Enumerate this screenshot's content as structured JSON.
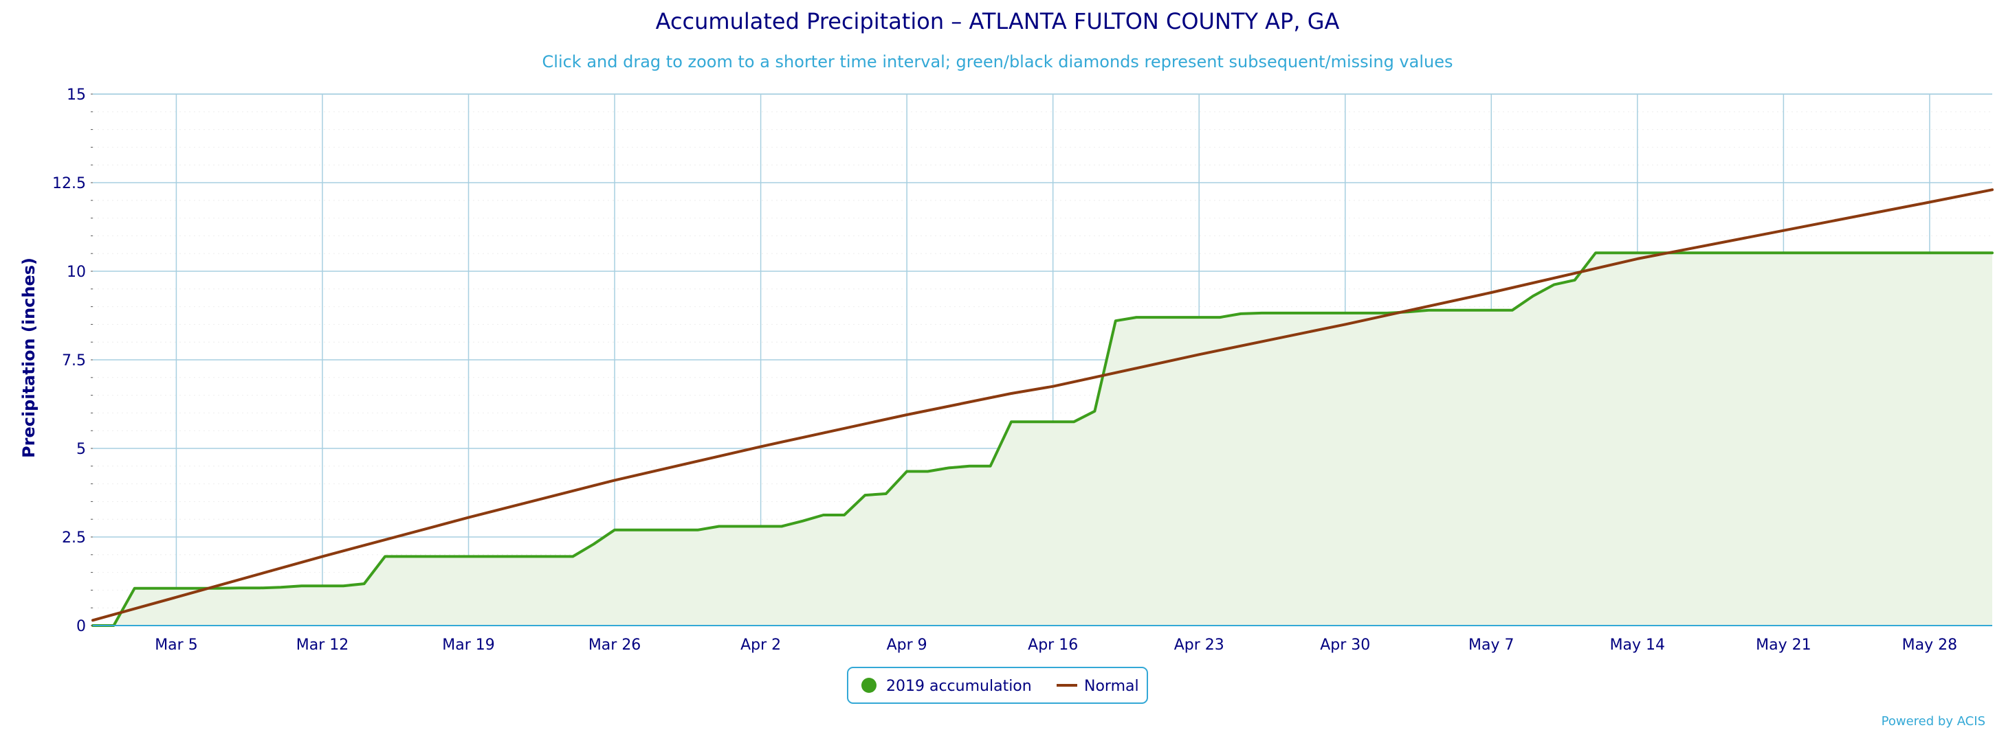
{
  "chart_data": {
    "type": "line",
    "title": "Accumulated Precipitation – ATLANTA FULTON COUNTY AP, GA",
    "subtitle": "Click and drag to zoom to a shorter time interval; green/black diamonds represent subsequent/missing values",
    "ylabel": "Precipitation (inches)",
    "xlabel": "",
    "ylim": [
      0,
      15
    ],
    "yticks": [
      0,
      2.5,
      5,
      7.5,
      10,
      12.5,
      15
    ],
    "ytick_labels": [
      "0",
      "2.5",
      "5",
      "7.5",
      "10",
      "12.5",
      "15"
    ],
    "xlim": [
      "2019-03-01",
      "2019-05-31"
    ],
    "xticks": [
      "2019-03-05",
      "2019-03-12",
      "2019-03-19",
      "2019-03-26",
      "2019-04-02",
      "2019-04-09",
      "2019-04-16",
      "2019-04-23",
      "2019-04-30",
      "2019-05-07",
      "2019-05-14",
      "2019-05-21",
      "2019-05-28"
    ],
    "xtick_labels": [
      "Mar 5",
      "Mar 12",
      "Mar 19",
      "Mar 26",
      "Apr 2",
      "Apr 9",
      "Apr 16",
      "Apr 23",
      "Apr 30",
      "May 7",
      "May 14",
      "May 21",
      "May 28"
    ],
    "grid": true,
    "legend_position": "bottom-center",
    "series": [
      {
        "name": "2019 accumulation",
        "color": "#3d9e1c",
        "fill": "#ebf4e6",
        "points": [
          [
            "2019-03-01",
            0
          ],
          [
            "2019-03-02",
            0
          ],
          [
            "2019-03-03",
            1.05
          ],
          [
            "2019-03-04",
            1.05
          ],
          [
            "2019-03-05",
            1.05
          ],
          [
            "2019-03-06",
            1.05
          ],
          [
            "2019-03-07",
            1.05
          ],
          [
            "2019-03-08",
            1.06
          ],
          [
            "2019-03-09",
            1.06
          ],
          [
            "2019-03-10",
            1.08
          ],
          [
            "2019-03-11",
            1.12
          ],
          [
            "2019-03-12",
            1.12
          ],
          [
            "2019-03-13",
            1.12
          ],
          [
            "2019-03-14",
            1.18
          ],
          [
            "2019-03-15",
            1.95
          ],
          [
            "2019-03-16",
            1.95
          ],
          [
            "2019-03-17",
            1.95
          ],
          [
            "2019-03-18",
            1.95
          ],
          [
            "2019-03-19",
            1.95
          ],
          [
            "2019-03-20",
            1.95
          ],
          [
            "2019-03-21",
            1.95
          ],
          [
            "2019-03-22",
            1.95
          ],
          [
            "2019-03-23",
            1.95
          ],
          [
            "2019-03-24",
            1.95
          ],
          [
            "2019-03-25",
            2.3
          ],
          [
            "2019-03-26",
            2.7
          ],
          [
            "2019-03-27",
            2.7
          ],
          [
            "2019-03-28",
            2.7
          ],
          [
            "2019-03-29",
            2.7
          ],
          [
            "2019-03-30",
            2.7
          ],
          [
            "2019-03-31",
            2.8
          ],
          [
            "2019-04-01",
            2.8
          ],
          [
            "2019-04-02",
            2.8
          ],
          [
            "2019-04-03",
            2.8
          ],
          [
            "2019-04-04",
            2.95
          ],
          [
            "2019-04-05",
            3.12
          ],
          [
            "2019-04-06",
            3.12
          ],
          [
            "2019-04-07",
            3.68
          ],
          [
            "2019-04-08",
            3.72
          ],
          [
            "2019-04-09",
            4.35
          ],
          [
            "2019-04-10",
            4.35
          ],
          [
            "2019-04-11",
            4.45
          ],
          [
            "2019-04-12",
            4.5
          ],
          [
            "2019-04-13",
            4.5
          ],
          [
            "2019-04-14",
            5.75
          ],
          [
            "2019-04-15",
            5.75
          ],
          [
            "2019-04-16",
            5.75
          ],
          [
            "2019-04-17",
            5.75
          ],
          [
            "2019-04-18",
            6.05
          ],
          [
            "2019-04-19",
            8.6
          ],
          [
            "2019-04-20",
            8.7
          ],
          [
            "2019-04-21",
            8.7
          ],
          [
            "2019-04-22",
            8.7
          ],
          [
            "2019-04-23",
            8.7
          ],
          [
            "2019-04-24",
            8.7
          ],
          [
            "2019-04-25",
            8.8
          ],
          [
            "2019-04-26",
            8.82
          ],
          [
            "2019-04-27",
            8.82
          ],
          [
            "2019-04-28",
            8.82
          ],
          [
            "2019-04-29",
            8.82
          ],
          [
            "2019-04-30",
            8.82
          ],
          [
            "2019-05-01",
            8.82
          ],
          [
            "2019-05-02",
            8.82
          ],
          [
            "2019-05-03",
            8.85
          ],
          [
            "2019-05-04",
            8.9
          ],
          [
            "2019-05-05",
            8.9
          ],
          [
            "2019-05-06",
            8.9
          ],
          [
            "2019-05-07",
            8.9
          ],
          [
            "2019-05-08",
            8.9
          ],
          [
            "2019-05-09",
            9.3
          ],
          [
            "2019-05-10",
            9.62
          ],
          [
            "2019-05-11",
            9.75
          ],
          [
            "2019-05-12",
            10.52
          ],
          [
            "2019-05-13",
            10.52
          ],
          [
            "2019-05-14",
            10.52
          ],
          [
            "2019-05-15",
            10.52
          ],
          [
            "2019-05-16",
            10.52
          ],
          [
            "2019-05-17",
            10.52
          ],
          [
            "2019-05-18",
            10.52
          ],
          [
            "2019-05-19",
            10.52
          ],
          [
            "2019-05-20",
            10.52
          ],
          [
            "2019-05-21",
            10.52
          ],
          [
            "2019-05-22",
            10.52
          ],
          [
            "2019-05-23",
            10.52
          ],
          [
            "2019-05-24",
            10.52
          ],
          [
            "2019-05-25",
            10.52
          ],
          [
            "2019-05-26",
            10.52
          ],
          [
            "2019-05-27",
            10.52
          ],
          [
            "2019-05-28",
            10.52
          ],
          [
            "2019-05-29",
            10.52
          ],
          [
            "2019-05-30",
            10.52
          ],
          [
            "2019-05-31",
            10.52
          ]
        ]
      },
      {
        "name": "Normal",
        "color": "#8b3a0f",
        "points": [
          [
            "2019-03-01",
            0.15
          ],
          [
            "2019-03-05",
            0.8
          ],
          [
            "2019-03-12",
            1.95
          ],
          [
            "2019-03-19",
            3.05
          ],
          [
            "2019-03-26",
            4.1
          ],
          [
            "2019-04-02",
            5.05
          ],
          [
            "2019-04-09",
            5.95
          ],
          [
            "2019-04-14",
            6.55
          ],
          [
            "2019-04-16",
            6.75
          ],
          [
            "2019-04-23",
            7.65
          ],
          [
            "2019-04-30",
            8.5
          ],
          [
            "2019-05-07",
            9.4
          ],
          [
            "2019-05-14",
            10.35
          ],
          [
            "2019-05-21",
            11.15
          ],
          [
            "2019-05-28",
            11.95
          ],
          [
            "2019-05-31",
            12.3
          ]
        ]
      }
    ]
  },
  "credits": "Powered by ACIS"
}
